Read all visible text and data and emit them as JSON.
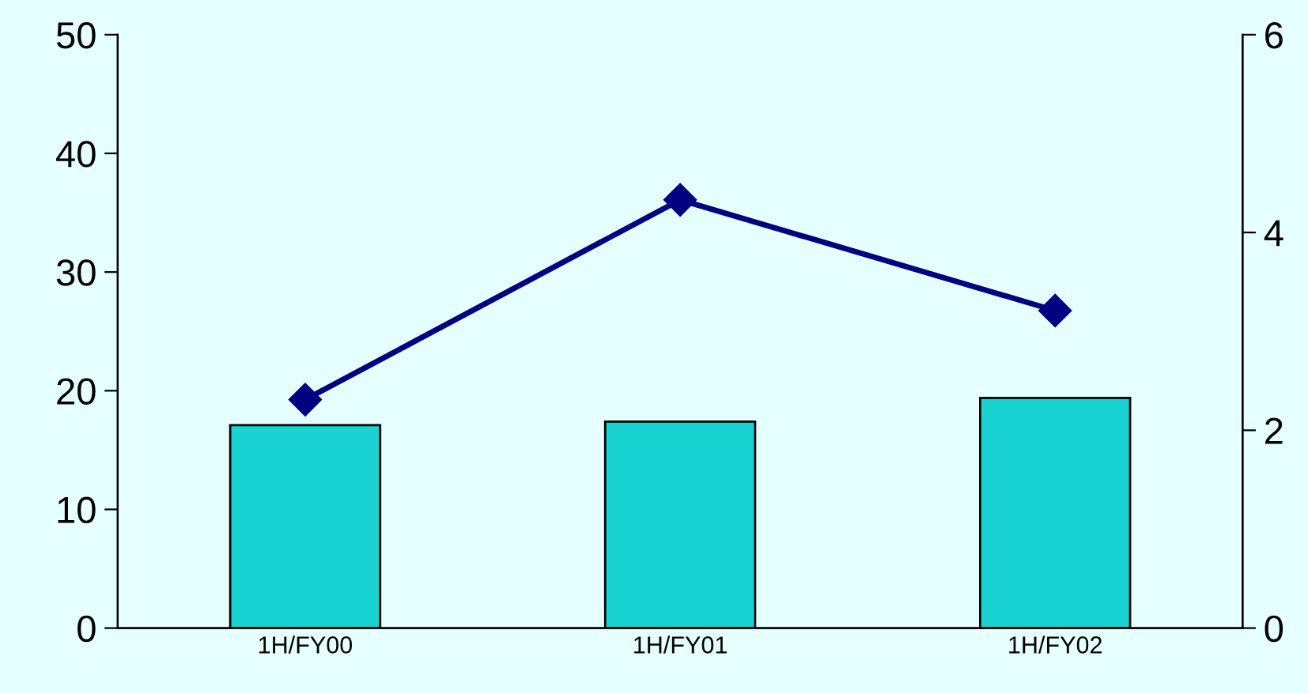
{
  "chart_data": {
    "type": "bar",
    "categories": [
      "1H/FY00",
      "1H/FY01",
      "1H/FY02"
    ],
    "series": [
      {
        "type": "bar",
        "color": "#19d3d3",
        "values": [
          17.1,
          17.4,
          19.4
        ]
      },
      {
        "type": "line",
        "axis": "y2",
        "color": "#000080",
        "values": [
          2.31,
          4.33,
          3.21
        ],
        "marker": "diamond",
        "line_style": "solid"
      }
    ],
    "ylim": [
      0,
      50
    ],
    "yticks": [
      0,
      10,
      20,
      30,
      40,
      50
    ],
    "y2lim": [
      0,
      6
    ],
    "y2ticks": [
      0,
      2,
      4,
      6
    ],
    "grid": false,
    "legend": false
  }
}
